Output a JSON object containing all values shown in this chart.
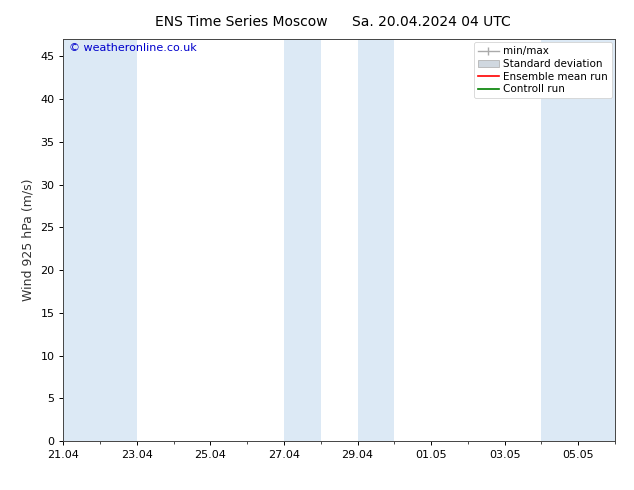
{
  "title_left": "ENS Time Series Moscow",
  "title_right": "Sa. 20.04.2024 04 UTC",
  "ylabel": "Wind 925 hPa (m/s)",
  "ylim": [
    0,
    47
  ],
  "yticks": [
    0,
    5,
    10,
    15,
    20,
    25,
    30,
    35,
    40,
    45
  ],
  "background_color": "#ffffff",
  "plot_bg_color": "#ffffff",
  "watermark": "© weatheronline.co.uk",
  "watermark_color": "#0000cc",
  "blue_band_color": "#dce9f5",
  "xtick_labels": [
    "21.04",
    "23.04",
    "25.04",
    "27.04",
    "29.04",
    "01.05",
    "03.05",
    "05.05"
  ],
  "xtick_major_positions": [
    0,
    2,
    4,
    6,
    8,
    10,
    12,
    14
  ],
  "blue_band_ranges": [
    [
      0,
      2
    ],
    [
      6,
      7
    ],
    [
      8,
      9
    ],
    [
      13,
      15
    ]
  ],
  "legend_items": [
    "min/max",
    "Standard deviation",
    "Ensemble mean run",
    "Controll run"
  ],
  "legend_line_colors": [
    "#aaaaaa",
    "#cccccc",
    "#ff0000",
    "#008000"
  ],
  "title_fontsize": 10,
  "label_fontsize": 9,
  "tick_fontsize": 8,
  "watermark_fontsize": 8,
  "legend_fontsize": 7.5,
  "xlim": [
    0,
    15
  ]
}
